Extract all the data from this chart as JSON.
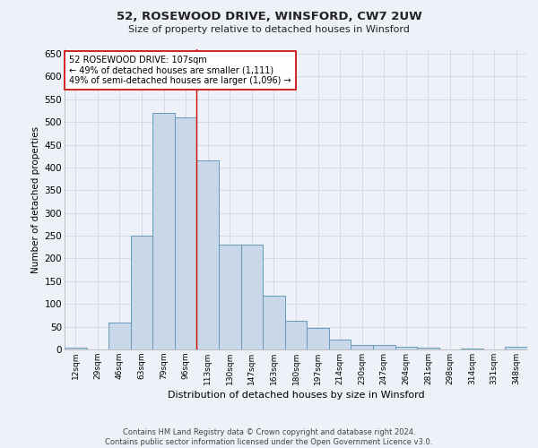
{
  "title": "52, ROSEWOOD DRIVE, WINSFORD, CW7 2UW",
  "subtitle": "Size of property relative to detached houses in Winsford",
  "xlabel": "Distribution of detached houses by size in Winsford",
  "ylabel": "Number of detached properties",
  "categories": [
    "12sqm",
    "29sqm",
    "46sqm",
    "63sqm",
    "79sqm",
    "96sqm",
    "113sqm",
    "130sqm",
    "147sqm",
    "163sqm",
    "180sqm",
    "197sqm",
    "214sqm",
    "230sqm",
    "247sqm",
    "264sqm",
    "281sqm",
    "298sqm",
    "314sqm",
    "331sqm",
    "348sqm"
  ],
  "values": [
    4,
    0,
    60,
    250,
    520,
    510,
    415,
    230,
    230,
    118,
    63,
    48,
    22,
    10,
    9,
    6,
    4,
    0,
    2,
    0,
    5
  ],
  "bar_color": "#c8d8e8",
  "bar_edge_color": "#6699bb",
  "marker_label": "52 ROSEWOOD DRIVE: 107sqm",
  "annotation_line1": "← 49% of detached houses are smaller (1,111)",
  "annotation_line2": "49% of semi-detached houses are larger (1,096) →",
  "marker_color": "#cc0000",
  "annotation_box_color": "#ffffff",
  "annotation_box_edge": "#cc0000",
  "grid_color": "#d0d8e8",
  "background_color": "#eef2f8",
  "footer_line1": "Contains HM Land Registry data © Crown copyright and database right 2024.",
  "footer_line2": "Contains public sector information licensed under the Open Government Licence v3.0.",
  "ylim": [
    0,
    660
  ],
  "yticks": [
    0,
    50,
    100,
    150,
    200,
    250,
    300,
    350,
    400,
    450,
    500,
    550,
    600,
    650
  ]
}
